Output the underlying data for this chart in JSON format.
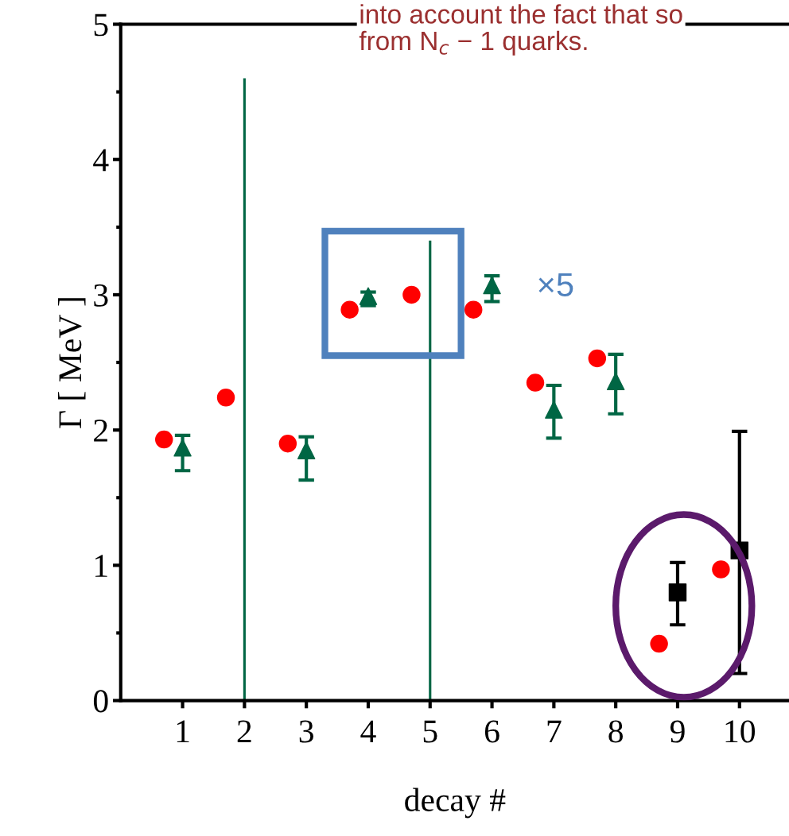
{
  "chart_data": {
    "type": "scatter",
    "xlabel": "decay #",
    "ylabel": "Γ [ MeV ]",
    "xlim": [
      0,
      10.8
    ],
    "xticks": [
      1,
      2,
      3,
      4,
      5,
      6,
      7,
      8,
      9,
      10
    ],
    "ylim": [
      0,
      5
    ],
    "yticks": [
      0,
      1,
      2,
      3,
      4,
      5
    ],
    "grid": false,
    "legend": false,
    "series": [
      {
        "marker": "circle",
        "color": "#ff0000",
        "x": [
          0.7,
          1.7,
          2.7,
          3.7,
          4.7,
          5.7,
          6.7,
          7.7,
          8.7,
          9.7
        ],
        "values": [
          1.93,
          2.24,
          1.9,
          2.89,
          3.0,
          2.89,
          2.35,
          2.53,
          0.42,
          0.97
        ]
      },
      {
        "marker": "triangle",
        "color": "#006644",
        "x": [
          1,
          3,
          4,
          6,
          7,
          8
        ],
        "values": [
          1.87,
          1.85,
          2.99,
          3.07,
          2.15,
          2.36
        ],
        "errors": [
          [
            1.7,
            1.96
          ],
          [
            1.63,
            1.95
          ],
          [
            2.92,
            3.02
          ],
          [
            2.95,
            3.14
          ],
          [
            1.94,
            2.33
          ],
          [
            2.12,
            2.56
          ]
        ]
      },
      {
        "type": "bar",
        "color": "#006644",
        "x": [
          2,
          5
        ],
        "base": [
          0,
          0
        ],
        "values": [
          4.6,
          3.4
        ]
      },
      {
        "marker": "square",
        "color": "#000000",
        "x": [
          9,
          10
        ],
        "values": [
          0.8,
          1.11
        ],
        "errors": [
          [
            0.56,
            1.02
          ],
          [
            0.2,
            1.99
          ]
        ]
      }
    ],
    "annotations": [
      "×5",
      "into account the fact that so\nfrom N$_{c}$ − 1 quarks."
    ]
  }
}
